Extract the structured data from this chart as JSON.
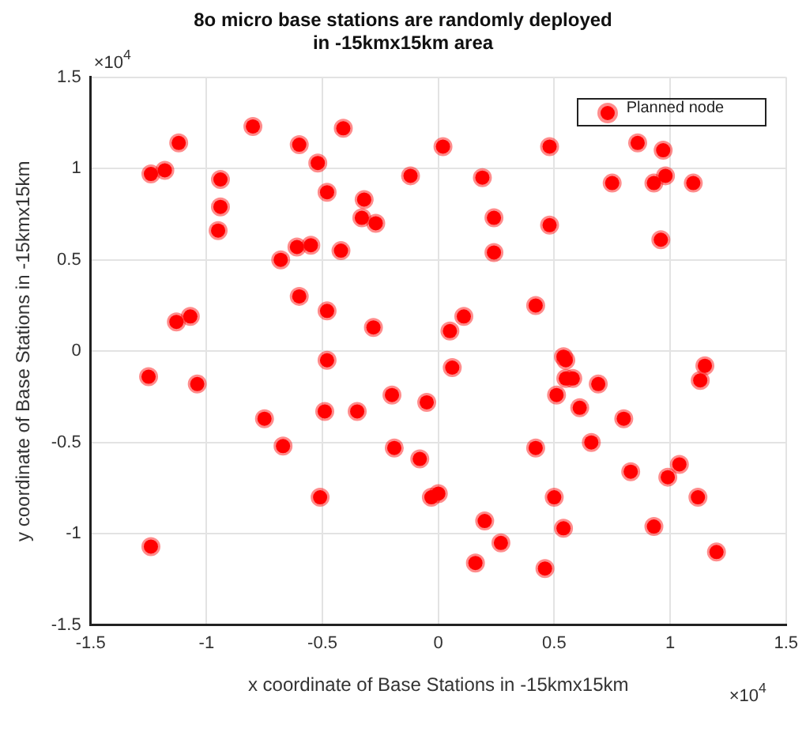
{
  "chart_data": {
    "type": "scatter",
    "title": "8o micro base stations are randomly deployed\nin -15kmx15km area",
    "xlabel": "x coordinate of Base Stations in -15kmx15km",
    "ylabel": "y coordinate of Base Stations in -15kmx15km",
    "annotations": [
      "×10$^{4}$",
      "×10$^{4}$"
    ],
    "xlim": [
      -1.5,
      1.5
    ],
    "xticks": [
      -1.5,
      -1,
      -0.5,
      0,
      0.5,
      1,
      1.5
    ],
    "ylim": [
      -1.5,
      1.5
    ],
    "yticks": [
      -1.5,
      -1,
      -0.5,
      0,
      0.5,
      1,
      1.5
    ],
    "grid": true,
    "legend": "top right",
    "marker": "circle",
    "series": [
      {
        "name": "Planned node",
        "color": "#ff0000",
        "x": [
          -1.24,
          -1.18,
          -1.12,
          -0.94,
          -0.94,
          -0.95,
          -0.8,
          -0.6,
          -0.52,
          -0.41,
          -0.48,
          -0.32,
          -0.33,
          -0.27,
          -0.12,
          0.02,
          -0.68,
          -0.61,
          -0.55,
          -0.42,
          -0.6,
          -0.48,
          -1.13,
          -1.07,
          -0.28,
          0.05,
          0.48,
          0.86,
          0.97,
          0.19,
          0.75,
          0.93,
          0.98,
          1.1,
          0.24,
          0.48,
          0.24,
          0.96,
          0.42,
          0.11,
          -1.25,
          -1.04,
          -0.48,
          -0.75,
          -0.67,
          -0.49,
          -0.35,
          -0.2,
          -0.05,
          -0.19,
          -0.08,
          -0.51,
          -0.03,
          0.0,
          0.06,
          0.54,
          0.55,
          0.55,
          0.58,
          0.51,
          0.69,
          0.61,
          0.8,
          1.15,
          1.13,
          0.42,
          0.66,
          0.83,
          1.04,
          0.99,
          0.5,
          1.12,
          0.2,
          0.54,
          0.93,
          0.27,
          0.16,
          0.46,
          1.2,
          -1.24
        ],
        "values": [
          0.97,
          0.99,
          1.14,
          0.94,
          0.79,
          0.66,
          1.23,
          1.13,
          1.03,
          1.22,
          0.87,
          0.83,
          0.73,
          0.7,
          0.96,
          1.12,
          0.5,
          0.57,
          0.58,
          0.55,
          0.3,
          0.22,
          0.16,
          0.19,
          0.13,
          0.11,
          1.12,
          1.14,
          1.1,
          0.95,
          0.92,
          0.92,
          0.96,
          0.92,
          0.73,
          0.69,
          0.54,
          0.61,
          0.25,
          0.19,
          -0.14,
          -0.18,
          -0.05,
          -0.37,
          -0.52,
          -0.33,
          -0.33,
          -0.24,
          -0.28,
          -0.53,
          -0.59,
          -0.8,
          -0.8,
          -0.78,
          -0.09,
          -0.03,
          -0.05,
          -0.15,
          -0.15,
          -0.24,
          -0.18,
          -0.31,
          -0.37,
          -0.08,
          -0.16,
          -0.53,
          -0.5,
          -0.66,
          -0.62,
          -0.69,
          -0.8,
          -0.8,
          -0.93,
          -0.97,
          -0.96,
          -1.05,
          -1.16,
          -1.19,
          -1.1,
          -1.07
        ]
      }
    ]
  }
}
